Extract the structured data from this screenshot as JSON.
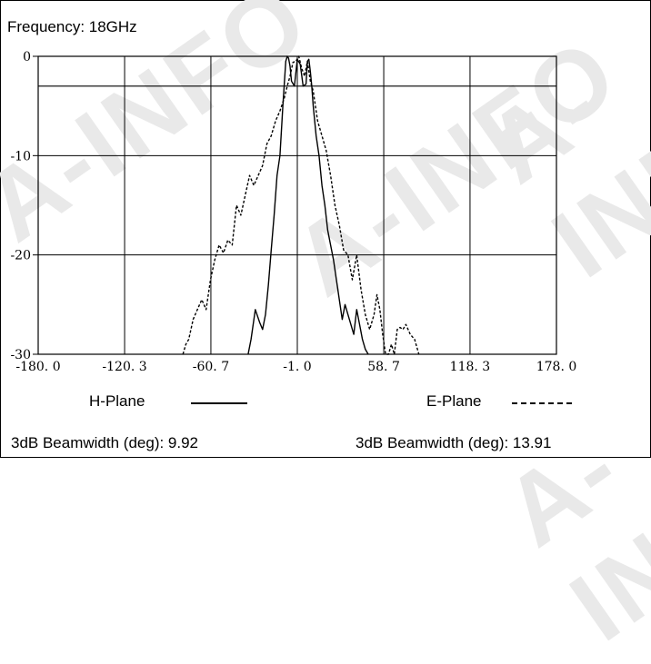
{
  "header": {
    "frequency_label": "Frequency: 18GHz"
  },
  "watermark": {
    "text": "A-INFO"
  },
  "legend": {
    "h_plane": "H-Plane",
    "e_plane": "E-Plane"
  },
  "footer": {
    "h_beamwidth": "3dB Beamwidth (deg): 9.92",
    "e_beamwidth": "3dB Beamwidth (deg): 13.91"
  },
  "chart_data": {
    "type": "line",
    "title": "",
    "xlabel": "",
    "ylabel": "",
    "xlim": [
      -180.0,
      178.0
    ],
    "ylim": [
      -30,
      0
    ],
    "x_ticks": [
      "-180. 0",
      "-120. 3",
      "-60. 7",
      "-1. 0",
      "58. 7",
      "118. 3",
      "178. 0"
    ],
    "x_tick_values": [
      -180.0,
      -120.3,
      -60.7,
      -1.0,
      58.7,
      118.3,
      178.0
    ],
    "y_ticks": [
      "0",
      "-10",
      "-20",
      "-30"
    ],
    "y_tick_values": [
      0,
      -10,
      -20,
      -30
    ],
    "reference_line": -3,
    "grid": true,
    "series": [
      {
        "name": "H-Plane",
        "style": "solid",
        "color": "#000000",
        "x": [
          -35,
          -33,
          -30,
          -27,
          -25,
          -23,
          -21,
          -19,
          -17,
          -15,
          -13,
          -11,
          -9,
          -8,
          -7,
          -6,
          -5,
          -3,
          -1,
          1,
          3,
          5,
          6,
          7,
          8,
          9,
          10,
          12,
          14,
          16,
          18,
          20,
          22,
          24,
          26,
          28,
          30,
          32,
          34,
          36,
          38,
          40,
          42,
          44,
          46,
          48
        ],
        "values": [
          -30,
          -28.5,
          -25.5,
          -26.8,
          -27.5,
          -26,
          -23,
          -19.5,
          -16,
          -12,
          -10,
          -5,
          -0.5,
          0,
          -0.2,
          -1,
          -2.5,
          -3,
          -0.3,
          -0.8,
          -3,
          -2.8,
          -0.5,
          -0.3,
          -1.5,
          -3,
          -5,
          -8,
          -10,
          -13,
          -15,
          -17.5,
          -19,
          -20.5,
          -22.5,
          -24.5,
          -26.5,
          -25,
          -26,
          -27,
          -28,
          -25.5,
          -27,
          -28.5,
          -29.5,
          -30
        ]
      },
      {
        "name": "E-Plane",
        "style": "dashed",
        "color": "#000000",
        "x": [
          -80,
          -78,
          -76,
          -73,
          -70,
          -67,
          -64,
          -61,
          -58,
          -55,
          -52,
          -49,
          -46,
          -43,
          -40,
          -37,
          -34,
          -31,
          -28,
          -25,
          -22,
          -19,
          -16,
          -13,
          -10,
          -8,
          -6,
          -4,
          -2,
          0,
          2,
          4,
          6,
          8,
          10,
          13,
          16,
          19,
          22,
          25,
          28,
          31,
          34,
          37,
          40,
          43,
          46,
          49,
          52,
          54,
          56,
          58,
          60,
          62,
          64,
          66,
          68,
          70,
          72,
          74,
          77,
          80,
          83
        ],
        "values": [
          -30,
          -29,
          -28.5,
          -26.5,
          -25.5,
          -24.5,
          -25.5,
          -22.5,
          -20.5,
          -19,
          -19.8,
          -18.5,
          -19,
          -15,
          -16,
          -14,
          -12,
          -13,
          -12,
          -11,
          -8.8,
          -8,
          -6.5,
          -5.5,
          -4.2,
          -3,
          -2,
          -0.6,
          -0.5,
          0,
          -1.2,
          -2,
          -0.5,
          -2.5,
          -3.5,
          -6.5,
          -8,
          -9.5,
          -12,
          -15,
          -17,
          -19.5,
          -20,
          -22.5,
          -20,
          -23.5,
          -26,
          -27.5,
          -26,
          -24,
          -25.5,
          -28,
          -30,
          -30,
          -29,
          -30,
          -27.5,
          -27.3,
          -27.5,
          -27,
          -28,
          -28.5,
          -30
        ]
      }
    ]
  }
}
